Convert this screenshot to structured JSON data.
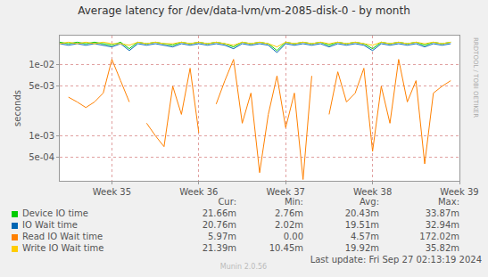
{
  "chart_data": {
    "type": "line",
    "title": "Average latency for /dev/data-lvm/vm-2085-disk-0 - by month",
    "y_label": "seconds",
    "log": "y",
    "grid": true,
    "x": [
      34.4,
      34.5,
      34.6,
      34.7,
      34.8,
      34.9,
      35.0,
      35.1,
      35.2,
      35.3,
      35.4,
      35.5,
      35.6,
      35.7,
      35.8,
      35.9,
      36.0,
      36.1,
      36.2,
      36.3,
      36.4,
      36.5,
      36.6,
      36.7,
      36.8,
      36.9,
      37.0,
      37.1,
      37.2,
      37.3,
      37.4,
      37.5,
      37.6,
      37.7,
      37.8,
      37.9,
      38.0,
      38.1,
      38.2,
      38.3,
      38.4,
      38.5,
      38.6,
      38.7,
      38.8,
      38.9
    ],
    "xlim": [
      34.4,
      39.0
    ],
    "xticks": [
      {
        "value": 35,
        "label": "Week 35"
      },
      {
        "value": 36,
        "label": "Week 36"
      },
      {
        "value": 37,
        "label": "Week 37"
      },
      {
        "value": 38,
        "label": "Week 38"
      },
      {
        "value": 39,
        "label": "Week 39"
      }
    ],
    "ylim": [
      0.00023,
      0.026
    ],
    "yticks": [
      {
        "value": 0.0005,
        "label": "5e-04"
      },
      {
        "value": 0.001,
        "label": "1e-03"
      },
      {
        "value": 0.005,
        "label": "5e-03"
      },
      {
        "value": 0.01,
        "label": "1e-02"
      }
    ],
    "stats_columns": [
      "Cur:",
      "Min:",
      "Avg:",
      "Max:"
    ],
    "series": [
      {
        "name": "Device IO time",
        "color": "#00CC00",
        "stats": [
          "21.66m",
          "2.76m",
          "20.43m",
          "33.87m"
        ],
        "values": [
          0.021,
          0.02,
          0.021,
          0.02,
          0.021,
          0.02,
          0.019,
          0.021,
          0.017,
          0.021,
          0.02,
          0.021,
          0.02,
          0.019,
          0.021,
          0.02,
          0.021,
          0.02,
          0.021,
          0.02,
          0.018,
          0.021,
          0.02,
          0.021,
          0.02,
          0.016,
          0.021,
          0.02,
          0.021,
          0.02,
          0.021,
          0.019,
          0.021,
          0.02,
          0.021,
          0.02,
          0.017,
          0.021,
          0.02,
          0.021,
          0.02,
          0.021,
          0.019,
          0.021,
          0.02,
          0.021
        ]
      },
      {
        "name": "IO Wait time",
        "color": "#0066B3",
        "stats": [
          "20.76m",
          "2.02m",
          "19.51m",
          "32.94m"
        ],
        "values": [
          0.02,
          0.019,
          0.02,
          0.019,
          0.02,
          0.019,
          0.018,
          0.02,
          0.016,
          0.02,
          0.019,
          0.02,
          0.019,
          0.018,
          0.02,
          0.019,
          0.02,
          0.019,
          0.02,
          0.019,
          0.017,
          0.02,
          0.019,
          0.02,
          0.019,
          0.015,
          0.02,
          0.019,
          0.02,
          0.019,
          0.02,
          0.018,
          0.02,
          0.019,
          0.02,
          0.019,
          0.016,
          0.02,
          0.019,
          0.02,
          0.019,
          0.02,
          0.018,
          0.02,
          0.019,
          0.02
        ]
      },
      {
        "name": "Read IO Wait time",
        "color": "#FF8000",
        "stats": [
          "5.97m",
          "0.00",
          "4.57m",
          "172.02m"
        ],
        "values": [
          null,
          0.0035,
          0.003,
          0.0025,
          0.003,
          0.004,
          0.012,
          0.006,
          0.003,
          null,
          0.0015,
          0.001,
          0.0007,
          0.005,
          0.002,
          0.009,
          0.0011,
          null,
          0.0028,
          0.006,
          0.012,
          0.0015,
          0.004,
          0.0003,
          0.002,
          0.007,
          0.0013,
          0.004,
          0.00024,
          0.007,
          null,
          0.002,
          0.008,
          0.003,
          0.004,
          0.009,
          0.0006,
          0.005,
          0.0015,
          0.012,
          0.003,
          0.006,
          0.0004,
          0.004,
          0.005,
          0.006
        ]
      },
      {
        "name": "Write IO Wait time",
        "color": "#FFCC00",
        "stats": [
          "21.39m",
          "10.45m",
          "19.92m",
          "35.82m"
        ],
        "values": [
          0.02,
          0.021,
          0.02,
          0.021,
          0.02,
          0.021,
          0.02,
          0.02,
          0.019,
          0.021,
          0.02,
          0.021,
          0.02,
          0.02,
          0.021,
          0.02,
          0.021,
          0.02,
          0.021,
          0.02,
          0.019,
          0.021,
          0.02,
          0.021,
          0.02,
          0.018,
          0.021,
          0.02,
          0.021,
          0.02,
          0.021,
          0.02,
          0.021,
          0.02,
          0.021,
          0.02,
          0.019,
          0.021,
          0.02,
          0.021,
          0.02,
          0.021,
          0.02,
          0.021,
          0.02,
          0.021
        ]
      }
    ],
    "side_text": "RRDTOOL / TOBI OETIKER",
    "last_update": "Last update: Fri Sep 27 02:13:19 2024",
    "footer": "Munin 2.0.56"
  }
}
